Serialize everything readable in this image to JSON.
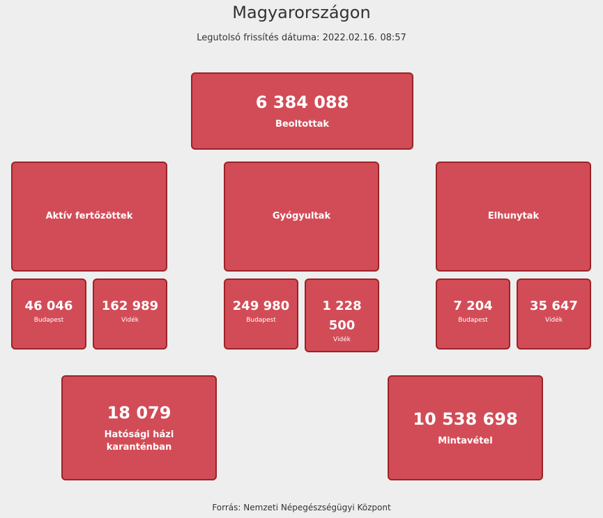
{
  "header": {
    "title": "Magyarországon",
    "updated": "Legutolsó frissítés dátuma: 2022.02.16. 08:57"
  },
  "vaccinated": {
    "value": "6 384 088",
    "label": "Beoltottak"
  },
  "active": {
    "label": "Aktív fertőzöttek",
    "budapest": "46 046",
    "budapest_label": "Budapest",
    "country": "162 989",
    "country_label": "Vidék"
  },
  "recovered": {
    "label": "Gyógyultak",
    "budapest": "249 980",
    "budapest_label": "Budapest",
    "country": "1 228 500",
    "country_label": "Vidék"
  },
  "deceased": {
    "label": "Elhunytak",
    "budapest": "7 204",
    "budapest_label": "Budapest",
    "country": "35 647",
    "country_label": "Vidék"
  },
  "quarantine": {
    "value": "18 079",
    "label": "Hatósági házi karanténban"
  },
  "tests": {
    "value": "10 538 698",
    "label": "Mintavétel"
  },
  "footer": "Forrás: Nemzeti Népegészségügyi Központ",
  "colors": {
    "card": "#d24c57",
    "border": "#9b2226",
    "background": "#eeeeee"
  }
}
